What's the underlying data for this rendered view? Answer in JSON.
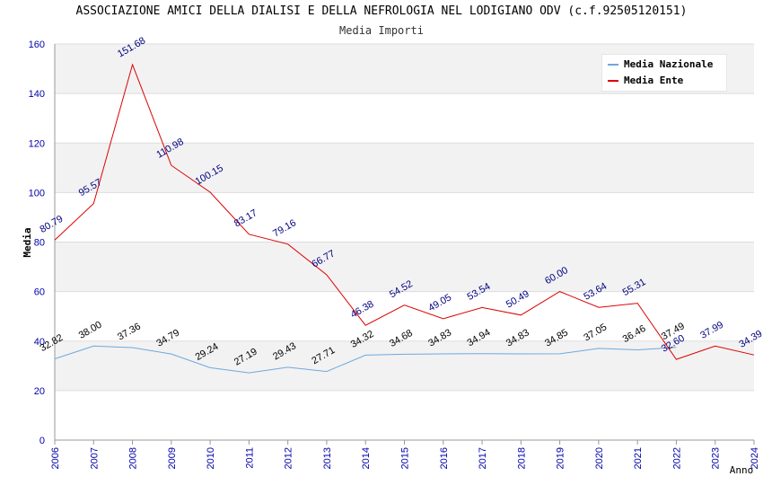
{
  "chart_data": {
    "type": "line",
    "title": "ASSOCIAZIONE AMICI DELLA DIALISI E DELLA NEFROLOGIA NEL LODIGIANO ODV (c.f.92505120151)",
    "subtitle": "Media Importi",
    "xlabel": "Anno",
    "ylabel": "Media",
    "ylim": [
      0,
      160
    ],
    "yticks": [
      "0",
      "20",
      "40",
      "60",
      "80",
      "100",
      "120",
      "140",
      "160"
    ],
    "categories": [
      "2006",
      "2007",
      "2008",
      "2009",
      "2010",
      "2011",
      "2012",
      "2013",
      "2014",
      "2015",
      "2016",
      "2017",
      "2018",
      "2019",
      "2020",
      "2021",
      "2022",
      "2023",
      "2024"
    ],
    "series": [
      {
        "name": "Media Nazionale",
        "color": "#6fa8dc",
        "label_color": "#000000",
        "values": [
          32.82,
          38.0,
          37.36,
          34.79,
          29.24,
          27.19,
          29.43,
          27.71,
          34.32,
          34.68,
          34.83,
          34.94,
          34.83,
          34.85,
          37.05,
          36.46,
          37.49,
          null,
          null
        ],
        "labels": [
          "32.82",
          "38.00",
          "37.36",
          "34.79",
          "29.24",
          "27.19",
          "29.43",
          "27.71",
          "34.32",
          "34.68",
          "34.83",
          "34.94",
          "34.83",
          "34.85",
          "37.05",
          "36.46",
          "37.49",
          "",
          ""
        ]
      },
      {
        "name": "Media Ente",
        "color": "#dd0000",
        "label_color": "#000080",
        "values": [
          80.79,
          95.57,
          151.68,
          110.98,
          100.15,
          83.17,
          79.16,
          66.77,
          46.38,
          54.52,
          49.05,
          53.54,
          50.49,
          60.0,
          53.64,
          55.31,
          32.6,
          37.99,
          34.39
        ],
        "labels": [
          "80.79",
          "95.57",
          "151.68",
          "110.98",
          "100.15",
          "83.17",
          "79.16",
          "66.77",
          "46.38",
          "54.52",
          "49.05",
          "53.54",
          "50.49",
          "60.00",
          "53.64",
          "55.31",
          "32.60",
          "37.99",
          "34.39"
        ]
      }
    ],
    "grid": true,
    "legend_position": "top-right",
    "colors": {
      "axis_text": "#0000aa",
      "band": "#f2f2f2",
      "grid": "#dddddd"
    }
  }
}
